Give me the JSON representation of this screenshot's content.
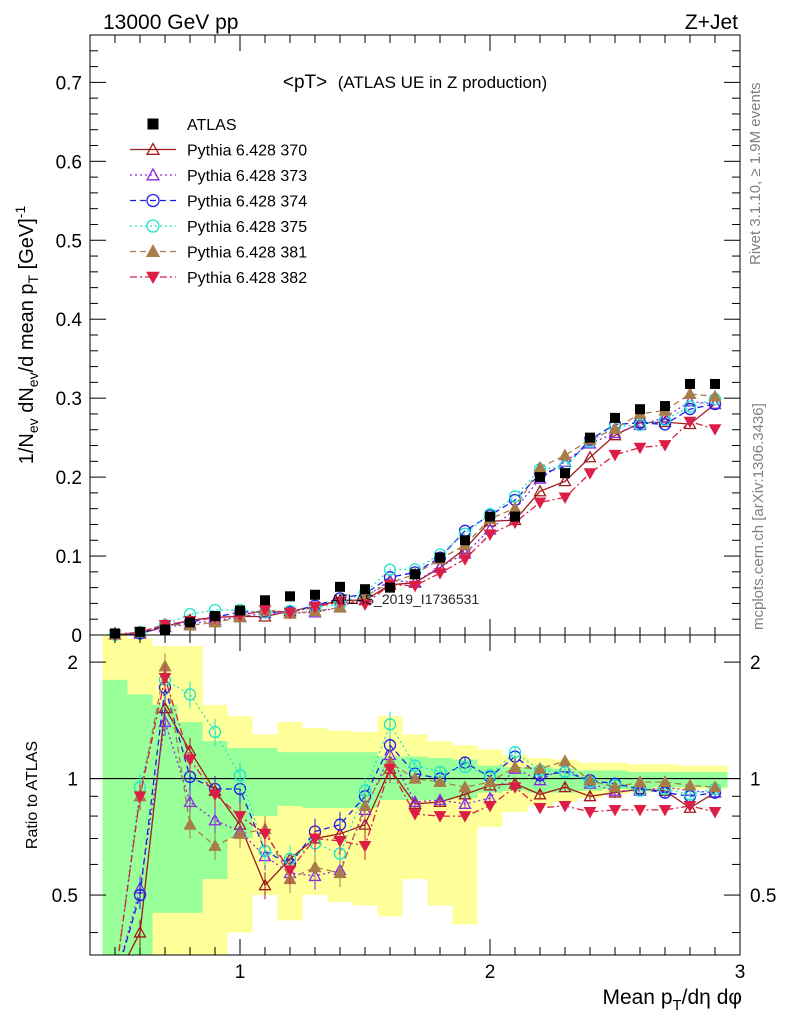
{
  "header": {
    "left": "13000 GeV pp",
    "right": "Z+Jet"
  },
  "side_labels": {
    "rivet": "Rivet 3.1.10, ≥ 1.9M events",
    "mcplots": "mcplots.cern.ch [arXiv:1306.3436]"
  },
  "chart_data": {
    "type": "scatter",
    "title": "<pT>",
    "subtitle": "(ATLAS UE in Z production)",
    "watermark": "ATLAS_2019_I1736531",
    "xlabel_main": "Mean p",
    "xlabel_sub": "T",
    "xlabel_tail": "/dη dφ",
    "ylabel_main": "1/N",
    "ylabel_parts": [
      "1/N",
      "ev",
      " dN",
      "ev",
      "/d mean p",
      "T",
      " [GeV]",
      "-1"
    ],
    "ratio_ylabel": "Ratio to ATLAS",
    "xlim": [
      0.4,
      3.0
    ],
    "ylim": [
      0,
      0.76
    ],
    "ratio_ylim": [
      0.35,
      2.35
    ],
    "legend_position": "top-left",
    "x_ticks": [
      "1",
      "2",
      "3"
    ],
    "y_ticks": [
      "0",
      "0.1",
      "0.2",
      "0.3",
      "0.4",
      "0.5",
      "0.6",
      "0.7"
    ],
    "ratio_ticks": [
      "0.5",
      "1",
      "2"
    ],
    "x": [
      0.5,
      0.6,
      0.7,
      0.8,
      0.9,
      1.0,
      1.1,
      1.2,
      1.3,
      1.4,
      1.5,
      1.6,
      1.7,
      1.8,
      1.9,
      2.0,
      2.1,
      2.2,
      2.3,
      2.4,
      2.5,
      2.6,
      2.7,
      2.8,
      2.9
    ],
    "data": {
      "name": "ATLAS",
      "values": [
        0.002,
        0.004,
        0.007,
        0.016,
        0.024,
        0.031,
        0.044,
        0.049,
        0.051,
        0.061,
        0.058,
        0.06,
        0.077,
        0.098,
        0.12,
        0.15,
        0.15,
        0.2,
        0.205,
        0.25,
        0.275,
        0.286,
        0.29,
        0.318,
        0.318
      ]
    },
    "series": [
      {
        "name": "Pythia 6.428 370",
        "color": "#a01c1c",
        "marker": "triangle-open",
        "dash": "solid",
        "ratio": [
          0.3,
          0.4,
          1.52,
          1.18,
          0.93,
          0.76,
          0.53,
          0.62,
          0.7,
          0.72,
          0.76,
          1.06,
          0.86,
          0.87,
          0.91,
          0.96,
          0.97,
          0.91,
          0.95,
          0.9,
          0.92,
          0.94,
          0.93,
          0.84,
          0.92
        ]
      },
      {
        "name": "Pythia 6.428 373",
        "color": "#8a2be2",
        "marker": "triangle-open",
        "dash": "dotted",
        "ratio": [
          0.3,
          0.52,
          1.4,
          0.87,
          0.78,
          0.73,
          0.63,
          0.57,
          0.56,
          0.58,
          0.83,
          1.15,
          0.87,
          0.88,
          0.86,
          0.89,
          1.06,
          0.99,
          1.07,
          0.97,
          0.93,
          0.93,
          0.95,
          0.93,
          0.92
        ]
      },
      {
        "name": "Pythia 6.428 374",
        "color": "#1e1ee6",
        "marker": "circle-open",
        "dash": "dashed",
        "ratio": [
          0.3,
          0.5,
          1.72,
          1.01,
          0.94,
          0.94,
          0.65,
          0.6,
          0.73,
          0.76,
          0.9,
          1.22,
          1.03,
          1.0,
          1.1,
          1.01,
          1.14,
          1.02,
          1.04,
          0.99,
          0.97,
          0.94,
          0.92,
          0.9,
          0.92
        ]
      },
      {
        "name": "Pythia 6.428 375",
        "color": "#1ee6c8",
        "marker": "circle-open",
        "dash": "dotted",
        "ratio": [
          0.3,
          0.95,
          1.8,
          1.65,
          1.32,
          1.02,
          0.65,
          0.62,
          0.68,
          0.64,
          0.93,
          1.38,
          1.08,
          1.04,
          1.07,
          1.02,
          1.17,
          1.05,
          1.04,
          0.98,
          0.96,
          0.93,
          0.94,
          0.91,
          0.94
        ]
      },
      {
        "name": "Pythia 6.428 381",
        "color": "#a87d4a",
        "marker": "triangle-filled",
        "dash": "dashed",
        "ratio": [
          0.3,
          0.9,
          1.95,
          0.76,
          0.67,
          0.72,
          0.74,
          0.55,
          0.59,
          0.57,
          0.85,
          1.1,
          1.0,
          0.98,
          0.95,
          0.98,
          1.07,
          1.06,
          1.11,
          0.99,
          0.95,
          0.98,
          0.98,
          0.96,
          0.95
        ]
      },
      {
        "name": "Pythia 6.428 382",
        "color": "#dc1e46",
        "marker": "triangle-down-filled",
        "dash": "dashdot",
        "ratio": [
          0.3,
          0.9,
          1.82,
          1.12,
          0.91,
          0.8,
          0.72,
          0.58,
          0.7,
          0.69,
          0.67,
          1.06,
          0.81,
          0.8,
          0.8,
          0.85,
          0.95,
          0.84,
          0.85,
          0.82,
          0.83,
          0.83,
          0.83,
          0.85,
          0.82
        ]
      }
    ],
    "bands": {
      "x_edges": [
        0.45,
        0.55,
        0.65,
        0.75,
        0.85,
        0.95,
        1.05,
        1.15,
        1.25,
        1.35,
        1.45,
        1.55,
        1.65,
        1.75,
        1.85,
        1.95,
        2.05,
        2.15,
        2.25,
        2.35,
        2.45,
        2.55,
        2.65,
        2.75,
        2.85,
        2.95
      ],
      "green_lo": [
        0.3,
        0.3,
        0.45,
        0.45,
        0.55,
        0.7,
        0.8,
        0.85,
        0.84,
        0.84,
        0.84,
        0.88,
        0.88,
        0.88,
        0.89,
        0.92,
        0.93,
        0.92,
        0.92,
        0.93,
        0.94,
        0.94,
        0.95,
        0.95,
        0.95
      ],
      "green_hi": [
        1.8,
        1.65,
        1.55,
        1.4,
        1.25,
        1.2,
        1.2,
        1.17,
        1.17,
        1.17,
        1.17,
        1.14,
        1.14,
        1.13,
        1.12,
        1.08,
        1.07,
        1.07,
        1.06,
        1.05,
        1.05,
        1.04,
        1.04,
        1.04,
        1.04
      ],
      "yellow_lo": [
        0.3,
        0.3,
        0.3,
        0.3,
        0.3,
        0.4,
        0.5,
        0.43,
        0.5,
        0.48,
        0.47,
        0.44,
        0.55,
        0.47,
        0.42,
        0.75,
        0.82,
        0.85,
        0.87,
        0.89,
        0.91,
        0.92,
        0.93,
        0.94,
        0.94
      ],
      "yellow_hi": [
        2.35,
        2.3,
        2.2,
        2.2,
        1.55,
        1.45,
        1.3,
        1.4,
        1.35,
        1.33,
        1.32,
        1.45,
        1.3,
        1.25,
        1.22,
        1.19,
        1.15,
        1.13,
        1.12,
        1.1,
        1.1,
        1.09,
        1.09,
        1.08,
        1.08
      ]
    }
  }
}
